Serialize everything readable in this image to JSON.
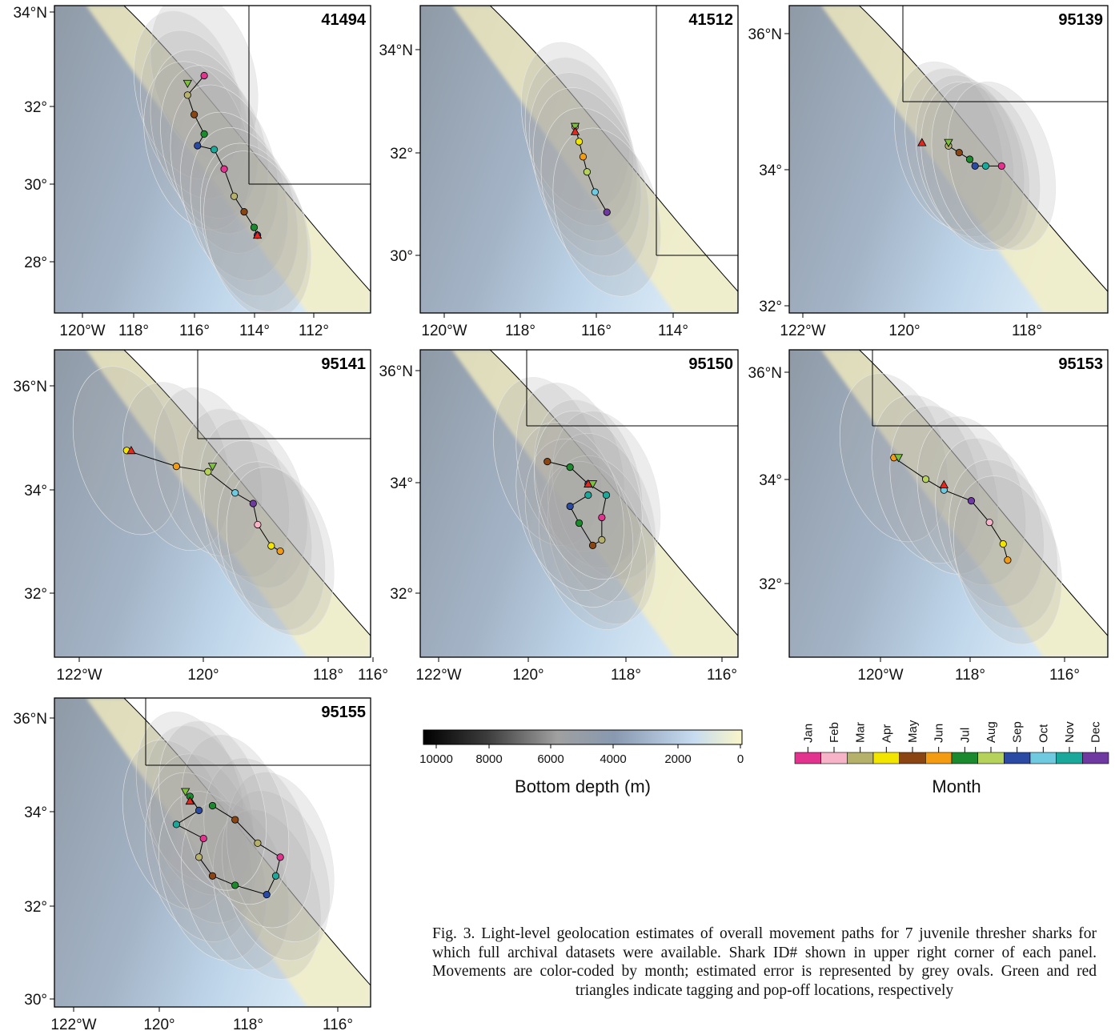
{
  "caption": "Fig. 3. Light-level geolocation estimates of overall movement paths for 7 juvenile thresher sharks for which full archival datasets were available. Shark ID# shown in upper right corner of each panel. Movements are color-coded by month; estimated error is represented by grey ovals. Green and red triangles indicate tagging and pop-off locations, respectively",
  "panels": [
    {
      "id": "41494",
      "lat_labels": [
        "34°N",
        "32°",
        "30°",
        "28°"
      ],
      "lon_labels": [
        "120°W",
        "118°",
        "116°",
        "114°",
        "112°"
      ],
      "track": [
        [
          -116.5,
          32.8
        ],
        [
          -117.0,
          32.3
        ],
        [
          -116.8,
          31.8
        ],
        [
          -116.5,
          31.3
        ],
        [
          -116.7,
          31.0
        ],
        [
          -116.2,
          30.9
        ],
        [
          -115.9,
          30.4
        ],
        [
          -115.6,
          29.7
        ],
        [
          -115.3,
          29.3
        ],
        [
          -115.0,
          28.9
        ],
        [
          -114.9,
          28.7
        ]
      ],
      "tag": [
        -117.0,
        32.6
      ],
      "popoff": [
        -114.9,
        28.7
      ]
    },
    {
      "id": "41512",
      "lat_labels": [
        "34°N",
        "32°",
        "30°"
      ],
      "lon_labels": [
        "120°W",
        "118°",
        "116°",
        "114°"
      ],
      "track": [
        [
          -117.1,
          32.6
        ],
        [
          -117.0,
          32.3
        ],
        [
          -116.9,
          32.0
        ],
        [
          -116.8,
          31.7
        ],
        [
          -116.6,
          31.3
        ],
        [
          -116.3,
          30.9
        ]
      ],
      "tag": [
        -117.1,
        32.6
      ],
      "popoff": [
        -117.1,
        32.5
      ]
    },
    {
      "id": "95139",
      "lat_labels": [
        "36°N",
        "34°",
        "32°"
      ],
      "lon_labels": [
        "122°W",
        "120°",
        "118°"
      ],
      "track": [
        [
          -119.5,
          34.3
        ],
        [
          -119.3,
          34.2
        ],
        [
          -119.1,
          34.1
        ],
        [
          -119.0,
          34.0
        ],
        [
          -118.8,
          34.0
        ],
        [
          -118.5,
          34.0
        ]
      ],
      "tag": [
        -119.5,
        34.35
      ],
      "popoff": [
        -120.0,
        34.35
      ]
    },
    {
      "id": "95141",
      "lat_labels": [
        "36°N",
        "34°",
        "32°"
      ],
      "lon_labels": [
        "122°W",
        "120°",
        "118°",
        "116°"
      ],
      "track": [
        [
          -121.4,
          34.7
        ],
        [
          -120.3,
          34.4
        ],
        [
          -119.6,
          34.3
        ],
        [
          -119.0,
          33.9
        ],
        [
          -118.6,
          33.7
        ],
        [
          -118.5,
          33.3
        ],
        [
          -118.2,
          32.9
        ],
        [
          -118.0,
          32.8
        ]
      ],
      "tag": [
        -119.5,
        34.4
      ],
      "popoff": [
        -121.3,
        34.7
      ]
    },
    {
      "id": "95150",
      "lat_labels": [
        "36°N",
        "34°",
        "32°"
      ],
      "lon_labels": [
        "122°W",
        "120°",
        "118°",
        "116°"
      ],
      "track": [
        [
          -119.7,
          34.4
        ],
        [
          -119.2,
          34.3
        ],
        [
          -118.8,
          34.0
        ],
        [
          -118.4,
          33.8
        ],
        [
          -118.5,
          33.4
        ],
        [
          -118.5,
          33.0
        ],
        [
          -118.7,
          32.9
        ],
        [
          -119.0,
          33.3
        ],
        [
          -119.2,
          33.6
        ],
        [
          -118.8,
          33.8
        ]
      ],
      "tag": [
        -118.7,
        34.0
      ],
      "popoff": [
        -118.8,
        34.0
      ]
    },
    {
      "id": "95153",
      "lat_labels": [
        "36°N",
        "34°",
        "32°"
      ],
      "lon_labels": [
        "120°W",
        "118°",
        "116°"
      ],
      "track": [
        [
          -119.7,
          34.4
        ],
        [
          -119.0,
          34.0
        ],
        [
          -118.6,
          33.8
        ],
        [
          -118.0,
          33.6
        ],
        [
          -117.6,
          33.2
        ],
        [
          -117.3,
          32.8
        ],
        [
          -117.2,
          32.5
        ]
      ],
      "tag": [
        -119.6,
        34.4
      ],
      "popoff": [
        -118.6,
        33.9
      ]
    },
    {
      "id": "95155",
      "lat_labels": [
        "36°N",
        "34°",
        "32°",
        "30°"
      ],
      "lon_labels": [
        "122°W",
        "120°",
        "118°",
        "116°"
      ],
      "track": [
        [
          -119.5,
          34.3
        ],
        [
          -119.3,
          34.0
        ],
        [
          -119.8,
          33.7
        ],
        [
          -119.2,
          33.4
        ],
        [
          -119.3,
          33.0
        ],
        [
          -119.0,
          32.6
        ],
        [
          -118.5,
          32.4
        ],
        [
          -117.8,
          32.2
        ],
        [
          -117.6,
          32.6
        ],
        [
          -117.5,
          33.0
        ],
        [
          -118.0,
          33.3
        ],
        [
          -118.5,
          33.8
        ],
        [
          -119.0,
          34.1
        ]
      ],
      "tag": [
        -119.6,
        34.4
      ],
      "popoff": [
        -119.5,
        34.2
      ]
    }
  ],
  "depth_legend": {
    "title": "Bottom depth (m)",
    "ticks": [
      "10000",
      "8000",
      "6000",
      "4000",
      "2000",
      "0"
    ]
  },
  "month_legend": {
    "title": "Month",
    "months": [
      "Jan",
      "Feb",
      "Mar",
      "Apr",
      "May",
      "Jun",
      "Jul",
      "Aug",
      "Sep",
      "Oct",
      "Nov",
      "Dec"
    ],
    "colors": [
      "#e2348f",
      "#f7b3c7",
      "#b5b06a",
      "#f2e600",
      "#8b4513",
      "#f39c12",
      "#1b8a2e",
      "#b5d35a",
      "#2a4aa3",
      "#6fc9df",
      "#1aa89a",
      "#6e3aa1"
    ]
  },
  "triangle_colors": {
    "tagging": "#7cc13a",
    "popoff": "#e5281e"
  }
}
